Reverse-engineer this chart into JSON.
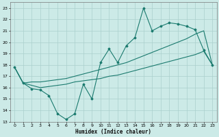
{
  "xlabel": "Humidex (Indice chaleur)",
  "xlim": [
    -0.5,
    23.5
  ],
  "ylim": [
    13,
    23.5
  ],
  "xticks": [
    0,
    1,
    2,
    3,
    4,
    5,
    6,
    7,
    8,
    9,
    10,
    11,
    12,
    13,
    14,
    15,
    16,
    17,
    18,
    19,
    20,
    21,
    22,
    23
  ],
  "yticks": [
    13,
    14,
    15,
    16,
    17,
    18,
    19,
    20,
    21,
    22,
    23
  ],
  "bg_color": "#cceae7",
  "grid_color": "#aacfcc",
  "line_color": "#1a7a6e",
  "line1_x": [
    0,
    1,
    2,
    3,
    4,
    5,
    6,
    7,
    8,
    9,
    10,
    11,
    12,
    13,
    14,
    15,
    16,
    17,
    18,
    19,
    20,
    21,
    22,
    23
  ],
  "line1_y": [
    17.8,
    16.4,
    15.9,
    15.8,
    15.3,
    13.7,
    13.2,
    13.7,
    16.3,
    15.0,
    18.2,
    19.4,
    18.2,
    19.7,
    20.4,
    23.0,
    21.0,
    21.4,
    21.7,
    21.6,
    21.4,
    21.1,
    19.3,
    18.0
  ],
  "line2_x": [
    0,
    1,
    2,
    3,
    4,
    5,
    6,
    7,
    8,
    9,
    10,
    11,
    12,
    13,
    14,
    15,
    16,
    17,
    18,
    19,
    20,
    21,
    22,
    23
  ],
  "line2_y": [
    17.8,
    16.4,
    16.5,
    16.5,
    16.6,
    16.7,
    16.8,
    17.0,
    17.2,
    17.4,
    17.6,
    17.8,
    18.0,
    18.2,
    18.5,
    18.8,
    19.1,
    19.4,
    19.7,
    20.0,
    20.3,
    20.7,
    21.0,
    18.0
  ],
  "line3_x": [
    0,
    1,
    2,
    3,
    4,
    5,
    6,
    7,
    8,
    9,
    10,
    11,
    12,
    13,
    14,
    15,
    16,
    17,
    18,
    19,
    20,
    21,
    22,
    23
  ],
  "line3_y": [
    17.8,
    16.4,
    16.2,
    16.0,
    16.1,
    16.2,
    16.3,
    16.5,
    16.6,
    16.7,
    16.8,
    17.0,
    17.1,
    17.3,
    17.5,
    17.7,
    17.9,
    18.1,
    18.3,
    18.5,
    18.7,
    18.9,
    19.2,
    18.0
  ]
}
